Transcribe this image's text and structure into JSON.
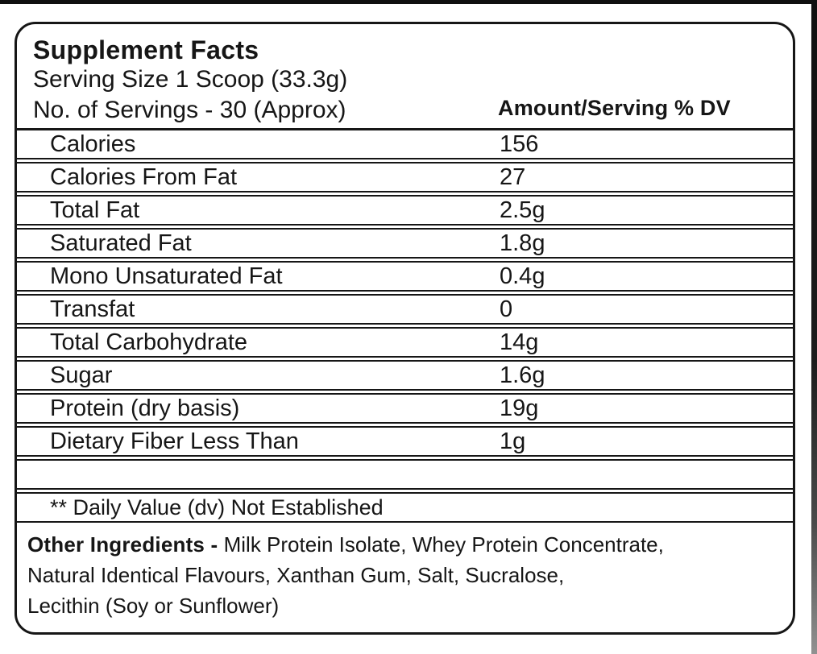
{
  "label": {
    "title": "Supplement Facts",
    "serving_size": "Serving Size 1 Scoop (33.3g)",
    "servings_count": "No. of Servings - 30 (Approx)",
    "amount_header": "Amount/Serving % DV",
    "rows": [
      {
        "label": "Calories",
        "value": "156"
      },
      {
        "label": "Calories From Fat",
        "value": "27"
      },
      {
        "label": "Total Fat",
        "value": "2.5g"
      },
      {
        "label": "Saturated Fat",
        "value": "1.8g"
      },
      {
        "label": "Mono Unsaturated Fat",
        "value": "0.4g"
      },
      {
        "label": "Transfat",
        "value": "0"
      },
      {
        "label": "Total Carbohydrate",
        "value": "14g"
      },
      {
        "label": "Sugar",
        "value": "1.6g"
      },
      {
        "label": "Protein (dry basis)",
        "value": "19g"
      },
      {
        "label": "Dietary Fiber Less Than",
        "value": "1g"
      }
    ],
    "footnote": "** Daily Value (dv) Not Established",
    "other_ingredients": {
      "label": "Other Ingredients -",
      "line1": "Milk Protein Isolate, Whey Protein Concentrate,",
      "line2": "Natural Identical Flavours, Xanthan Gum, Salt, Sucralose,",
      "line3": "Lecithin (Soy or Sunflower)"
    },
    "colors": {
      "text": "#161616",
      "border": "#161616",
      "background": "#ffffff",
      "edge_artifact": "#0f0f0f"
    }
  }
}
